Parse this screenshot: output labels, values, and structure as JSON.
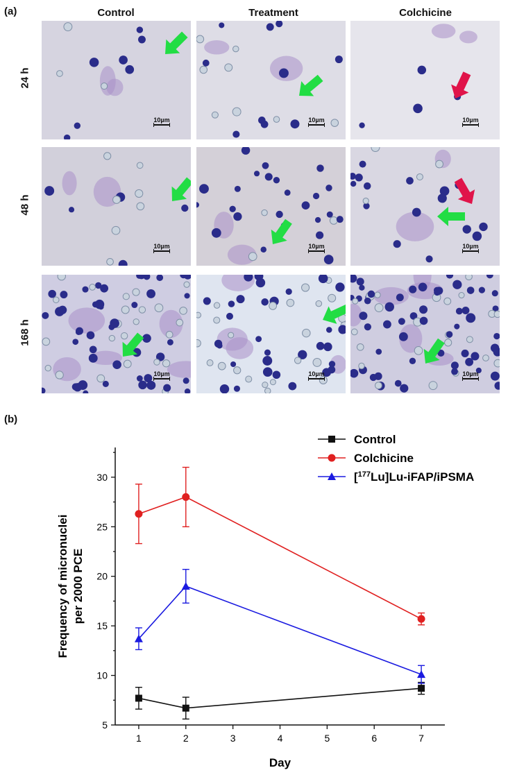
{
  "panel_a_label": "(a)",
  "panel_b_label": "(b)",
  "columns": [
    "Control",
    "Treatment",
    "Colchicine"
  ],
  "rows": [
    "24 h",
    "48 h",
    "168 h"
  ],
  "scale_bar_label": "10µm",
  "colors": {
    "control": "#111111",
    "colchicine": "#e02020",
    "lu": "#1a1ae0",
    "green_arrow": "#22dd44",
    "red_arrow": "#e0144a"
  },
  "chart_data": {
    "type": "line",
    "xlabel": "Day",
    "ylabel_line1": "Frequency of micronuclei",
    "ylabel_line2": "per 2000 PCE",
    "x": [
      1,
      2,
      7
    ],
    "xlim": [
      0.5,
      7.5
    ],
    "ylim": [
      5,
      33
    ],
    "xticks": [
      "1",
      "2",
      "3",
      "4",
      "5",
      "6",
      "7"
    ],
    "yticks": [
      "5",
      "10",
      "15",
      "20",
      "25",
      "30"
    ],
    "legend_position": "top-right",
    "series": [
      {
        "name": "Control",
        "marker": "square",
        "color": "#111111",
        "values": [
          7.7,
          6.7,
          8.7
        ],
        "errors": [
          1.1,
          1.1,
          0.6
        ]
      },
      {
        "name": "Colchicine",
        "marker": "circle",
        "color": "#e02020",
        "values": [
          26.3,
          28.0,
          15.7
        ],
        "errors": [
          3.0,
          3.0,
          0.6
        ]
      },
      {
        "name_sup": "177",
        "name_pre": "[",
        "name_post": "Lu]Lu-iFAP/iPSMA",
        "marker": "triangle",
        "color": "#1a1ae0",
        "values": [
          13.7,
          19.0,
          10.1
        ],
        "errors": [
          1.1,
          1.7,
          0.9
        ]
      }
    ]
  }
}
